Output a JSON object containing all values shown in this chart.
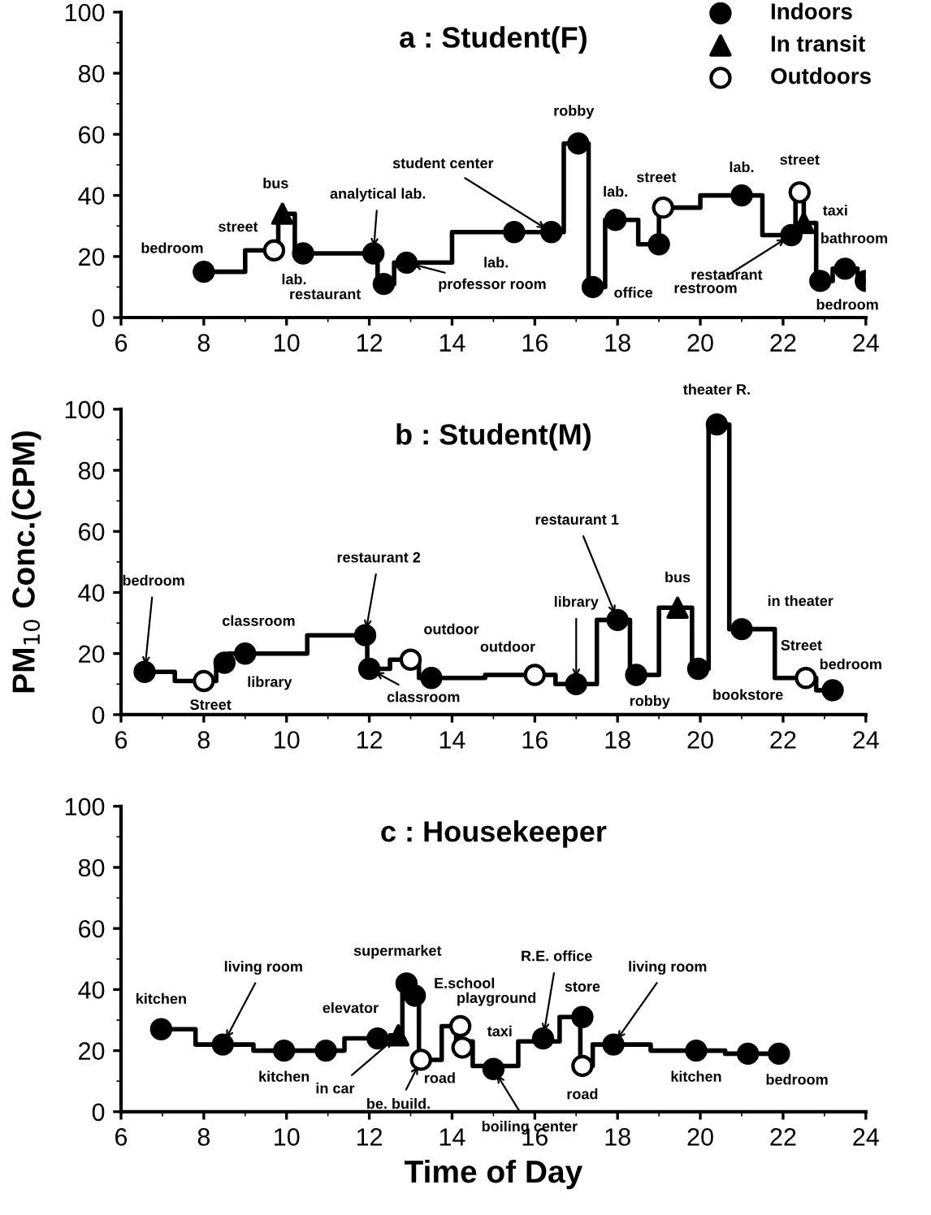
{
  "chart_data": [
    {
      "type": "step",
      "title": "a : Student(F)",
      "xlim": [
        6,
        24
      ],
      "xticks": [
        6,
        8,
        10,
        12,
        14,
        16,
        18,
        20,
        22,
        24
      ],
      "ylim": [
        0,
        100
      ],
      "yticks": [
        0,
        20,
        40,
        60,
        80,
        100
      ],
      "grid": false,
      "legend": "top right",
      "tick_labels": "xy",
      "series": [
        {
          "type": "step",
          "color": "#000000",
          "x": [
            8,
            9.0,
            9.8,
            10.2,
            12.2,
            12.6,
            14.0,
            16.7,
            17.3,
            17.7,
            18.5,
            19.0,
            20.0,
            21.5,
            22.3,
            22.5,
            22.8,
            23.2,
            23.8,
            24
          ],
          "values": [
            15,
            22,
            34,
            21,
            11,
            18,
            28,
            57,
            10,
            32,
            24,
            36,
            40,
            27,
            41,
            31,
            12,
            16,
            12,
            12
          ]
        },
        {
          "type": "scatter",
          "name": "Indoors",
          "marker": "circle",
          "color": "#000000",
          "x": [
            8,
            10.4,
            12.1,
            12.35,
            12.9,
            15.5,
            16.4,
            17.05,
            17.4,
            17.95,
            19,
            21,
            22.2,
            22.9,
            23.5,
            24
          ],
          "values": [
            15,
            21,
            21,
            11,
            18,
            28,
            28,
            57,
            10,
            32,
            24,
            40,
            27,
            12,
            16,
            12
          ]
        },
        {
          "type": "scatter",
          "name": "In transit",
          "marker": "triangle",
          "color": "#000000",
          "x": [
            9.9,
            22.5
          ],
          "values": [
            34,
            31
          ]
        },
        {
          "type": "scatter",
          "name": "Outdoors",
          "marker": "circle",
          "color": "#ffffff",
          "x": [
            9.7,
            19.1,
            22.4
          ],
          "values": [
            22,
            36,
            41
          ]
        }
      ],
      "annotations": [
        {
          "text": "bedroom",
          "x": 8,
          "y": 15
        },
        {
          "text": "street",
          "x": 9.7,
          "y": 22
        },
        {
          "text": "bus",
          "x": 9.9,
          "y": 34
        },
        {
          "text": "lab.",
          "x": 10.4,
          "y": 21
        },
        {
          "text": "analytical lab.",
          "x": 12.1,
          "y": 21
        },
        {
          "text": "restaurant",
          "x": 12.35,
          "y": 11
        },
        {
          "text": "professor room",
          "x": 12.9,
          "y": 18
        },
        {
          "text": "lab.",
          "x": 15.5,
          "y": 28
        },
        {
          "text": "student center",
          "x": 16.4,
          "y": 28
        },
        {
          "text": "robby",
          "x": 17.05,
          "y": 57
        },
        {
          "text": "office",
          "x": 17.4,
          "y": 10
        },
        {
          "text": "lab.",
          "x": 17.95,
          "y": 32
        },
        {
          "text": "restaurant",
          "x": 19,
          "y": 24
        },
        {
          "text": "street",
          "x": 19.1,
          "y": 36
        },
        {
          "text": "lab.",
          "x": 21,
          "y": 40
        },
        {
          "text": "restroom",
          "x": 22.2,
          "y": 27
        },
        {
          "text": "street",
          "x": 22.4,
          "y": 41
        },
        {
          "text": "taxi",
          "x": 22.5,
          "y": 31
        },
        {
          "text": "bedroom",
          "x": 22.9,
          "y": 12
        },
        {
          "text": "bathroom",
          "x": 23.5,
          "y": 16
        }
      ]
    },
    {
      "type": "step",
      "title": "b : Student(M)",
      "ylabel": "PM$_{10}$ Conc.(CPM)",
      "xlim": [
        6,
        24
      ],
      "xticks": [
        6,
        8,
        10,
        12,
        14,
        16,
        18,
        20,
        22,
        24
      ],
      "ylim": [
        0,
        100
      ],
      "yticks": [
        0,
        20,
        40,
        60,
        80,
        100
      ],
      "grid": false,
      "series": [
        {
          "type": "step",
          "color": "#000000",
          "x": [
            6.57,
            7.3,
            8.3,
            8.6,
            10.5,
            11.95,
            12.5,
            13.2,
            14.8,
            16.5,
            17.5,
            18.3,
            19.0,
            19.8,
            20.2,
            20.7,
            21.8,
            22.8,
            23.3
          ],
          "values": [
            14,
            11,
            17,
            20,
            26,
            15,
            18,
            12,
            13,
            10,
            31,
            13,
            35,
            15,
            95,
            28,
            12,
            8,
            8
          ]
        },
        {
          "type": "scatter",
          "marker": "circle",
          "color": "#000000",
          "x": [
            6.57,
            8.5,
            9.0,
            11.9,
            12.0,
            13.5,
            17.0,
            18.0,
            18.45,
            19.95,
            20.4,
            21.0,
            23.2
          ],
          "values": [
            14,
            17,
            20,
            26,
            15,
            12,
            10,
            31,
            13,
            15,
            95,
            28,
            8
          ]
        },
        {
          "type": "scatter",
          "marker": "triangle",
          "color": "#000000",
          "x": [
            19.45
          ],
          "values": [
            35
          ]
        },
        {
          "type": "scatter",
          "marker": "circle",
          "color": "#ffffff",
          "x": [
            8.0,
            13.0,
            16.0,
            22.55
          ],
          "values": [
            11,
            18,
            13,
            12
          ]
        }
      ],
      "annotations": [
        {
          "text": "bedroom",
          "x": 6.57,
          "y": 14
        },
        {
          "text": "Street",
          "x": 8.0,
          "y": 11
        },
        {
          "text": "library",
          "x": 8.5,
          "y": 17
        },
        {
          "text": "classroom",
          "x": 9.0,
          "y": 20
        },
        {
          "text": "restaurant 2",
          "x": 11.9,
          "y": 26
        },
        {
          "text": "classroom",
          "x": 12.0,
          "y": 15
        },
        {
          "text": "outdoor",
          "x": 13.0,
          "y": 18
        },
        {
          "text": "outdoor",
          "x": 16.0,
          "y": 13
        },
        {
          "text": "library",
          "x": 17.0,
          "y": 10
        },
        {
          "text": "restaurant 1",
          "x": 18.0,
          "y": 31
        },
        {
          "text": "robby",
          "x": 18.45,
          "y": 13
        },
        {
          "text": "bus",
          "x": 19.45,
          "y": 35
        },
        {
          "text": "bookstore",
          "x": 19.95,
          "y": 15
        },
        {
          "text": "theater R.",
          "x": 20.4,
          "y": 95
        },
        {
          "text": "in theater",
          "x": 21.0,
          "y": 28
        },
        {
          "text": "Street",
          "x": 22.55,
          "y": 12
        },
        {
          "text": "bedroom",
          "x": 23.2,
          "y": 8
        }
      ]
    },
    {
      "type": "step",
      "title": "c : Housekeeper",
      "xlabel": "Time of Day",
      "xlim": [
        6,
        24
      ],
      "xticks": [
        6,
        8,
        10,
        12,
        14,
        16,
        18,
        20,
        22,
        24
      ],
      "ylim": [
        0,
        100
      ],
      "yticks": [
        0,
        20,
        40,
        60,
        80,
        100
      ],
      "grid": false,
      "series": [
        {
          "type": "step",
          "color": "#000000",
          "x": [
            6.97,
            7.8,
            9.2,
            11.4,
            12.5,
            12.8,
            13.0,
            13.2,
            13.75,
            14.1,
            14.5,
            15.6,
            16.6,
            17.1,
            17.4,
            18.8,
            20.6,
            22
          ],
          "values": [
            27,
            22,
            20,
            24,
            25,
            42,
            38,
            17,
            28,
            23,
            15,
            23,
            31,
            15,
            22,
            20,
            19,
            19
          ]
        },
        {
          "type": "scatter",
          "marker": "circle",
          "color": "#000000",
          "x": [
            6.97,
            8.46,
            9.94,
            10.95,
            12.2,
            12.9,
            13.1,
            15.0,
            16.2,
            17.15,
            17.9,
            19.9,
            21.15,
            21.9
          ],
          "values": [
            27,
            22,
            20,
            20,
            24,
            42,
            38,
            14,
            24,
            31,
            22,
            20,
            19,
            19
          ]
        },
        {
          "type": "scatter",
          "marker": "triangle",
          "color": "#000000",
          "x": [
            12.7
          ],
          "values": [
            25
          ]
        },
        {
          "type": "scatter",
          "marker": "circle",
          "color": "#ffffff",
          "x": [
            13.25,
            14.2,
            14.25,
            17.15
          ],
          "values": [
            17,
            28,
            21,
            15
          ]
        }
      ],
      "annotations": [
        {
          "text": "kitchen",
          "x": 6.97,
          "y": 27
        },
        {
          "text": "living room",
          "x": 8.46,
          "y": 22
        },
        {
          "text": "kitchen",
          "x": 9.94,
          "y": 20
        },
        {
          "text": "elevator",
          "x": 12.2,
          "y": 24
        },
        {
          "text": "in car",
          "x": 12.7,
          "y": 25
        },
        {
          "text": "supermarket",
          "x": 12.9,
          "y": 42
        },
        {
          "text": "E.school",
          "x": 13.1,
          "y": 38
        },
        {
          "text": "be. build.",
          "x": 13.25,
          "y": 17
        },
        {
          "text": "playground",
          "x": 14.2,
          "y": 28
        },
        {
          "text": "taxi",
          "x": 14.5,
          "y": 23
        },
        {
          "text": "road",
          "x": 14.25,
          "y": 21
        },
        {
          "text": "boiling center",
          "x": 15.0,
          "y": 14
        },
        {
          "text": "R.E. office",
          "x": 16.2,
          "y": 24
        },
        {
          "text": "store",
          "x": 17.15,
          "y": 31
        },
        {
          "text": "road",
          "x": 17.15,
          "y": 15
        },
        {
          "text": "living room",
          "x": 17.9,
          "y": 22
        },
        {
          "text": "kitchen",
          "x": 19.9,
          "y": 20
        },
        {
          "text": "bedroom",
          "x": 21.9,
          "y": 19
        }
      ]
    }
  ]
}
